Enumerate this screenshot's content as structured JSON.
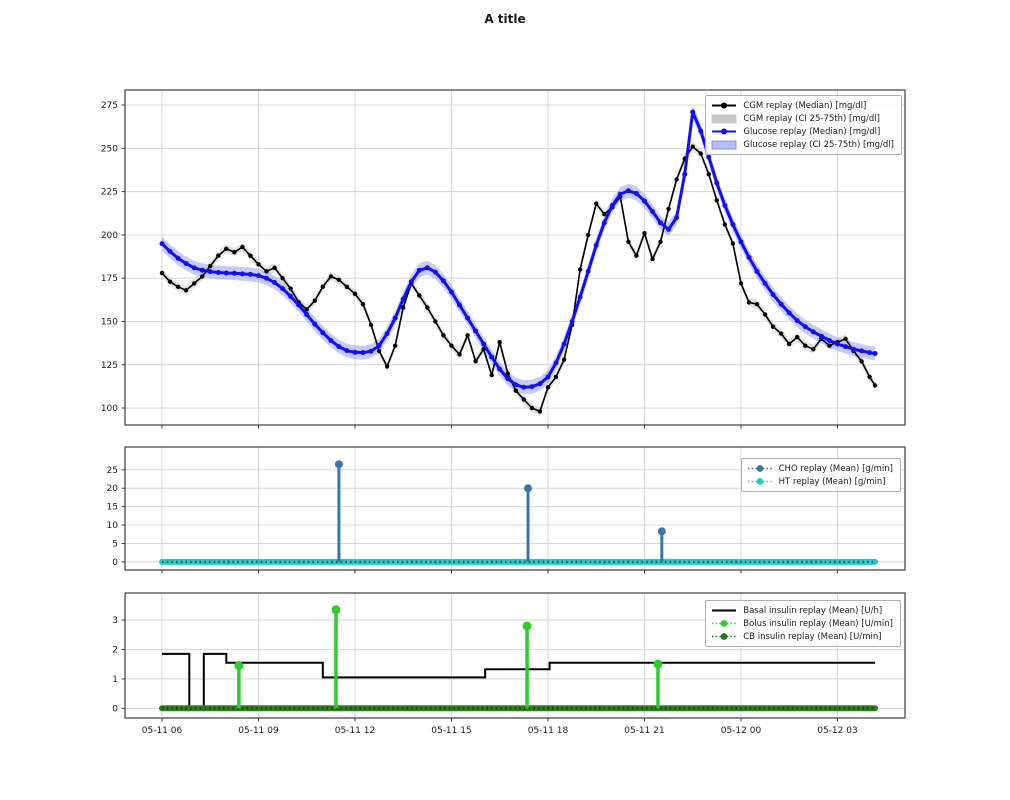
{
  "title": "A title",
  "chart_data": {
    "type": "line",
    "x_axis": {
      "range": [
        -1.15,
        23.1
      ],
      "unit": "hours since 05-11 06:00",
      "ticks": [
        {
          "t": 0,
          "label": "05-11 06"
        },
        {
          "t": 3,
          "label": "05-11 09"
        },
        {
          "t": 6,
          "label": "05-11 12"
        },
        {
          "t": 9,
          "label": "05-11 15"
        },
        {
          "t": 12,
          "label": "05-11 18"
        },
        {
          "t": 15,
          "label": "05-11 21"
        },
        {
          "t": 18,
          "label": "05-12 00"
        },
        {
          "t": 21,
          "label": "05-12 03"
        }
      ]
    },
    "subplots": [
      {
        "id": "glucose",
        "ylim": [
          90.2,
          283.7
        ],
        "yticks": [
          100,
          125,
          150,
          175,
          200,
          225,
          250,
          275
        ],
        "series": [
          {
            "name": "CGM replay (Median) [mg/dl]",
            "type": "line-marker",
            "color": "#000000",
            "line_width": 1.6,
            "marker_r": 2.2,
            "t_start": 0,
            "t_step": 0.25,
            "t_last": 22.17,
            "values": [
              178,
              173,
              170,
              168,
              172,
              176,
              182,
              188,
              192,
              190,
              193,
              188,
              183,
              179,
              181,
              175,
              169,
              161,
              157,
              162,
              170,
              176,
              174,
              170,
              166,
              160,
              148,
              133,
              124,
              136,
              158,
              172,
              165,
              158,
              150,
              142,
              136,
              131,
              142,
              127,
              134,
              119,
              138,
              120,
              110,
              105,
              100,
              98,
              112,
              118,
              128,
              148,
              180,
              200,
              218,
              212,
              216,
              222,
              196,
              188,
              201,
              186,
              196,
              215,
              232,
              244,
              251,
              247,
              235,
              220,
              206,
              195,
              172,
              161,
              160,
              154,
              147,
              143,
              137,
              141,
              136,
              134,
              140,
              136,
              138,
              140,
              133,
              127,
              118,
              113
            ]
          },
          {
            "name": "CGM replay (CI 25-75th) [mg/dl]",
            "type": "ci-band",
            "color": "#c6c6c6",
            "opacity": 0.5,
            "halfwidth": 2.5,
            "follows": 0
          },
          {
            "name": "Glucose replay (Median) [mg/dl]",
            "type": "line-marker",
            "color": "#1010f0",
            "line_width": 3,
            "marker_r": 2.5,
            "t_start": 0,
            "t_step": 0.25,
            "t_last": 22.17,
            "values": [
              195,
              190.5,
              186.5,
              183.5,
              181,
              179.6,
              178.8,
              178.3,
              178,
              177.8,
              177.5,
              177.2,
              176.5,
              175,
              172.5,
              169,
              164.5,
              159.5,
              154,
              148.5,
              143.5,
              139,
              135.5,
              133.2,
              132.2,
              132,
              132.8,
              136,
              143,
              152,
              163,
              173,
              179.5,
              181,
              178.5,
              173.5,
              167,
              159.5,
              152,
              144.5,
              137,
              129.5,
              122.5,
              117,
              113.5,
              112,
              112.3,
              114,
              118,
              126,
              137,
              150,
              164,
              179,
              194,
              207,
              217,
              223.5,
              225.5,
              224,
              219.5,
              213.5,
              207,
              203.2,
              210,
              235,
              271,
              260,
              245,
              230,
              217,
              206,
              196,
              187,
              179,
              172,
              165.5,
              160,
              155,
              150.5,
              147,
              144,
              141.5,
              139,
              137,
              135.5,
              134,
              133,
              132,
              131.5
            ]
          },
          {
            "name": "Glucose replay (CI 25-75th) [mg/dl]",
            "type": "ci-band",
            "color": "#98a3f2",
            "opacity": 0.55,
            "halfwidth": 4,
            "follows": 2
          }
        ],
        "legend": [
          {
            "label": "CGM replay (Median) [mg/dl]",
            "swatch": "line-marker",
            "color": "#000000"
          },
          {
            "label": "CGM replay (CI 25-75th) [mg/dl]",
            "swatch": "patch",
            "color": "#c9c9c9",
            "border": "#c9c9c9"
          },
          {
            "label": "Glucose replay (Median) [mg/dl]",
            "swatch": "line-marker",
            "color": "#1010f0"
          },
          {
            "label": "Glucose replay (CI 25-75th) [mg/dl]",
            "swatch": "patch",
            "color": "#b6bdf6",
            "border": "#8a97ea"
          }
        ]
      },
      {
        "id": "meals",
        "ylim": [
          -2.2,
          31.2
        ],
        "yticks": [
          0,
          5,
          10,
          15,
          20,
          25
        ],
        "series": [
          {
            "name": "CHO replay (Mean) [g/min]",
            "type": "stem",
            "color": "#3878a8",
            "line_width": 3,
            "marker_r": 4,
            "stems": [
              {
                "t": 5.5,
                "v": 26.5
              },
              {
                "t": 11.38,
                "v": 20
              },
              {
                "t": 15.54,
                "v": 8.3
              }
            ]
          },
          {
            "name": "HT replay (Mean) [g/min]",
            "type": "flat-dotted",
            "color": "#29c7c7",
            "dot_color": "#0b6363",
            "value": 0,
            "t0": 0,
            "t1": 22.17
          }
        ],
        "legend": [
          {
            "label": "CHO replay (Mean) [g/min]",
            "swatch": "dot-marker",
            "color": "#3878a8"
          },
          {
            "label": "HT replay (Mean) [g/min]",
            "swatch": "dot-marker",
            "color": "#29c7c7"
          }
        ]
      },
      {
        "id": "insulin",
        "ylim": [
          -0.33,
          3.92
        ],
        "yticks": [
          0,
          1,
          2,
          3
        ],
        "series": [
          {
            "name": "Basal insulin replay (Mean) [U/h]",
            "type": "step",
            "color": "#000000",
            "line_width": 2,
            "t_end": 22.17,
            "steps": [
              [
                0,
                1.85
              ],
              [
                0.85,
                0.05
              ],
              [
                1.3,
                1.85
              ],
              [
                2.0,
                1.55
              ],
              [
                5.0,
                1.05
              ],
              [
                10.05,
                1.33
              ],
              [
                12.05,
                1.55
              ]
            ]
          },
          {
            "name": "Bolus insulin replay (Mean) [U/min]",
            "type": "stem",
            "color": "#2fcc2f",
            "line_width": 3.5,
            "marker_r": 4.5,
            "stems": [
              {
                "t": 2.39,
                "v": 1.45
              },
              {
                "t": 5.41,
                "v": 3.35
              },
              {
                "t": 11.35,
                "v": 2.8
              },
              {
                "t": 15.42,
                "v": 1.5
              }
            ]
          },
          {
            "name": "CB insulin replay (Mean) [U/min]",
            "type": "flat-dotted",
            "color": "#2e7d1a",
            "dot_color": "#15420a",
            "value": 0,
            "t0": 0,
            "t1": 22.17
          }
        ],
        "legend": [
          {
            "label": "Basal insulin replay (Mean) [U/h]",
            "swatch": "line",
            "color": "#000000"
          },
          {
            "label": "Bolus insulin replay (Mean) [U/min]",
            "swatch": "dot-marker",
            "color": "#2fcc2f"
          },
          {
            "label": "CB insulin replay (Mean) [U/min]",
            "swatch": "dot-marker",
            "color": "#1e7a1e"
          }
        ]
      }
    ],
    "style": {
      "grid_color": "#d3d3d3",
      "spine_color": "#3c3c3c",
      "tick_label_color": "#1a1a1a"
    }
  }
}
